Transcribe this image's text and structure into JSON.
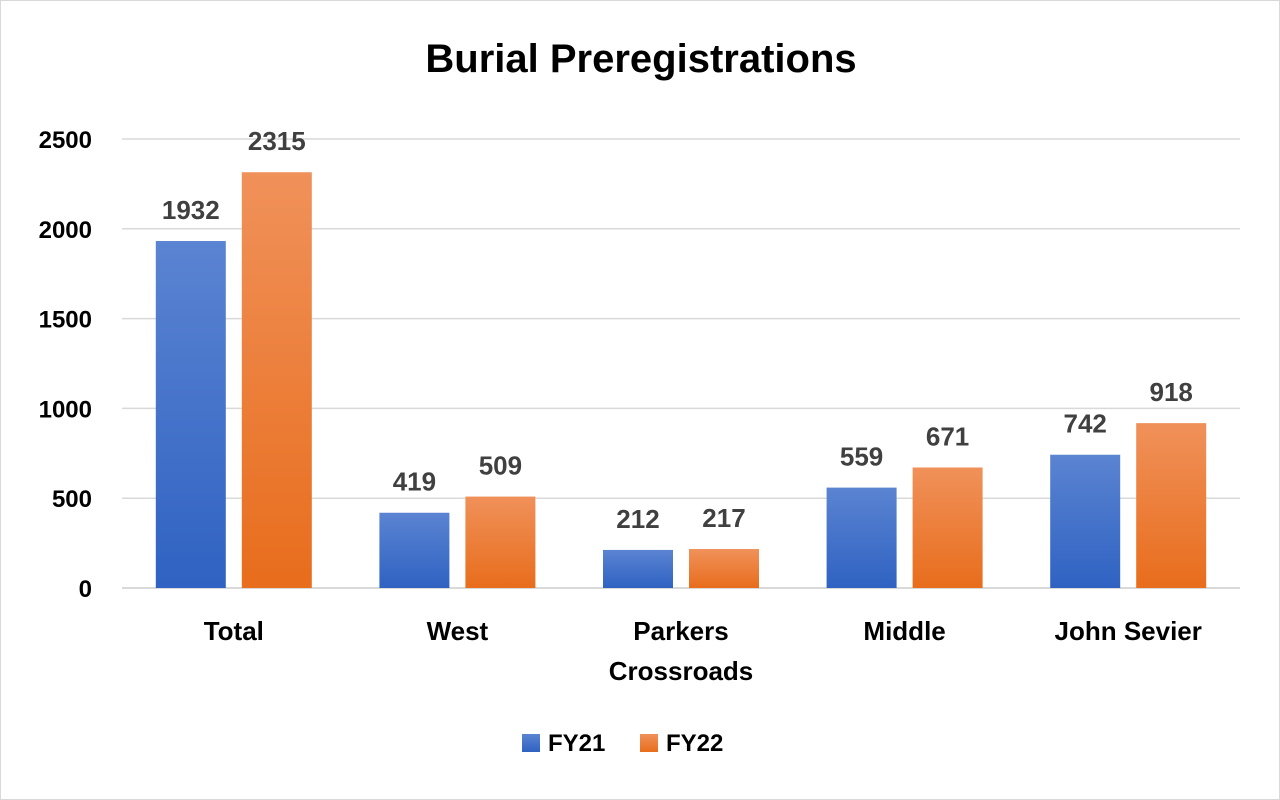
{
  "chart_data": {
    "type": "bar",
    "title": "Burial Preregistrations",
    "categories": [
      "Total",
      "West",
      "Parkers Crossroads",
      "Middle",
      "John Sevier"
    ],
    "category_lines": [
      [
        "Total"
      ],
      [
        "West"
      ],
      [
        "Parkers",
        "Crossroads"
      ],
      [
        "Middle"
      ],
      [
        "John Sevier"
      ]
    ],
    "series": [
      {
        "name": "FY21",
        "values": [
          1932,
          419,
          212,
          559,
          742
        ],
        "color_top": "#5b84d2",
        "color_bottom": "#2f62c2"
      },
      {
        "name": "FY22",
        "values": [
          2315,
          509,
          217,
          671,
          918
        ],
        "color_top": "#f0915a",
        "color_bottom": "#e86d1c"
      }
    ],
    "ylim": [
      0,
      2500
    ],
    "yticks": [
      0,
      500,
      1000,
      1500,
      2000,
      2500
    ],
    "grid": true,
    "legend_position": "bottom",
    "xlabel": "",
    "ylabel": ""
  },
  "colors": {
    "grid": "#d9d9d9",
    "axis": "#d9d9d9",
    "data_label": "#404040"
  }
}
